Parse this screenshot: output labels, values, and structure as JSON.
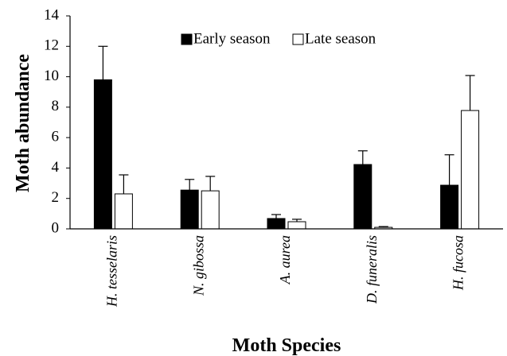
{
  "chart_data": {
    "type": "bar",
    "categories": [
      "H. tesselaris",
      "N. gibossa",
      "A. aurea",
      "D. funeralis",
      "H. fucosa"
    ],
    "series": [
      {
        "name": "Early season",
        "color": "#000000",
        "values": [
          9.8,
          2.55,
          0.68,
          4.23,
          2.87
        ],
        "errors": [
          2.2,
          0.7,
          0.26,
          0.9,
          2.0
        ]
      },
      {
        "name": "Late season",
        "color": "#ffffff",
        "values": [
          2.3,
          2.5,
          0.47,
          0.1,
          7.78
        ],
        "errors": [
          1.25,
          0.95,
          0.16,
          0.05,
          2.3
        ]
      }
    ],
    "ylim": [
      0,
      14
    ],
    "yticks": [
      0,
      2,
      4,
      6,
      8,
      10,
      12,
      14
    ],
    "x_label": "Moth Species",
    "y_label": "Moth abundance",
    "legend": "top"
  }
}
